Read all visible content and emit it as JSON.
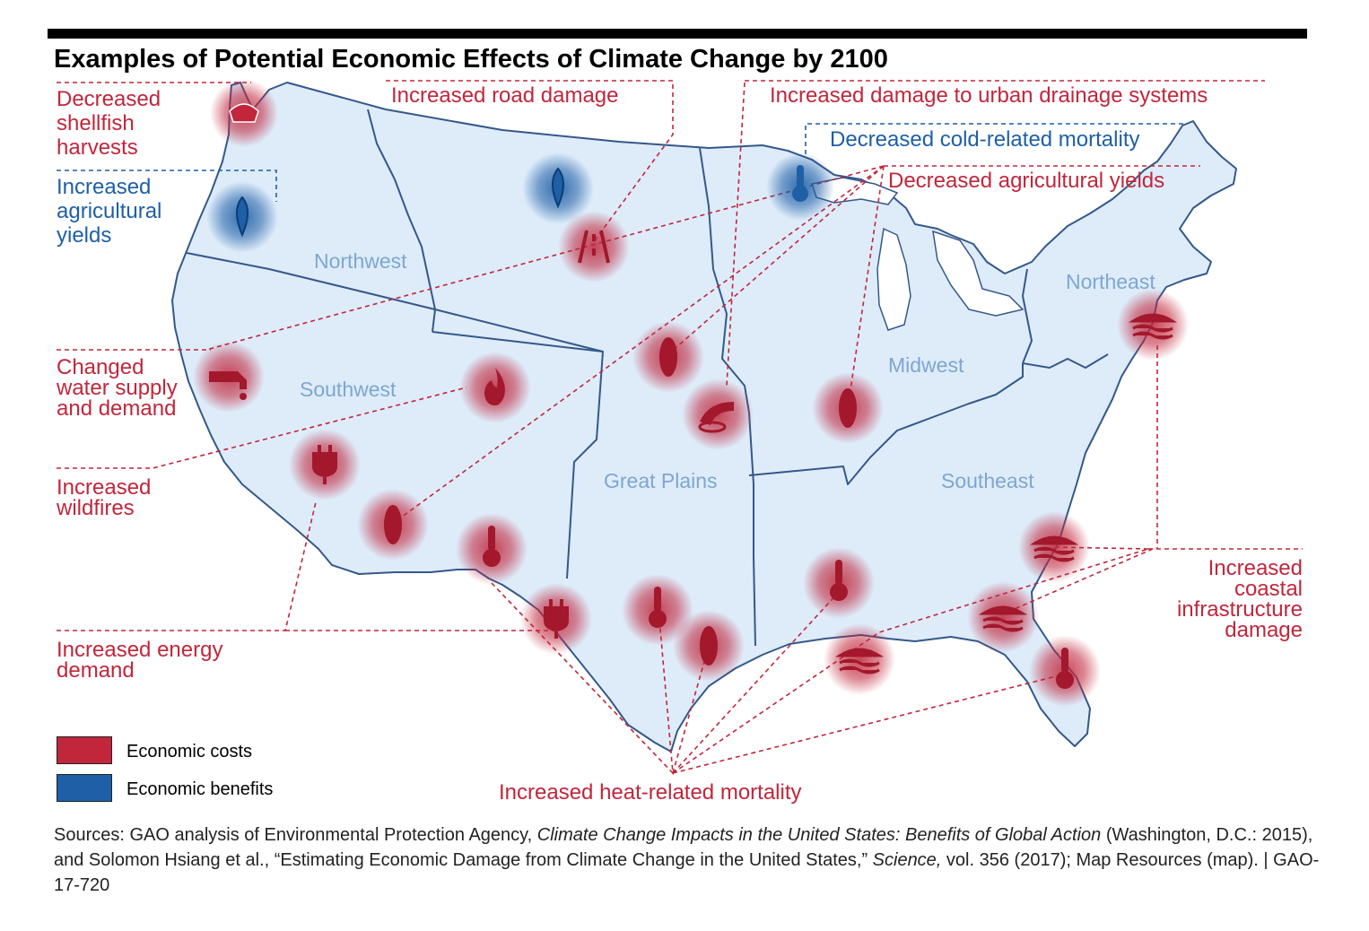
{
  "title": "Examples of Potential Economic Effects of Climate Change by 2100",
  "colors": {
    "cost": "#c1263b",
    "benefit": "#1f5fa6",
    "land": "#deecfa",
    "border": "#34588a",
    "region_label": "#7fa6cf"
  },
  "regions": [
    "Northwest",
    "Southwest",
    "Great Plains",
    "Midwest",
    "Northeast",
    "Southeast"
  ],
  "effects": [
    {
      "label": "Decreased shellfish harvests",
      "type": "cost"
    },
    {
      "label": "Increased road damage",
      "type": "cost"
    },
    {
      "label": "Increased damage to urban drainage systems",
      "type": "cost"
    },
    {
      "label": "Decreased cold-related mortality",
      "type": "benefit"
    },
    {
      "label": "Increased agricultural yields",
      "type": "benefit"
    },
    {
      "label": "Decreased agricultural yields",
      "type": "cost"
    },
    {
      "label": "Changed water supply and demand",
      "type": "cost"
    },
    {
      "label": "Increased wildfires",
      "type": "cost"
    },
    {
      "label": "Increased energy demand",
      "type": "cost"
    },
    {
      "label": "Increased coastal infrastructure damage",
      "type": "cost"
    },
    {
      "label": "Increased heat-related mortality",
      "type": "cost"
    }
  ],
  "legend": {
    "cost": "Economic costs",
    "benefit": "Economic benefits"
  },
  "source": {
    "part1": "Sources: GAO analysis of Environmental Protection Agency, ",
    "italic1": "Climate Change Impacts in the United States: Benefits of Global Action",
    "part2": " (Washington, D.C.: 2015), and Solomon Hsiang et al., “Estimating Economic Damage from Climate Change in the United States,” ",
    "italic2": "Science,",
    "part3": " vol. 356 (2017); Map Resources (map).  |  GAO-17-720"
  }
}
